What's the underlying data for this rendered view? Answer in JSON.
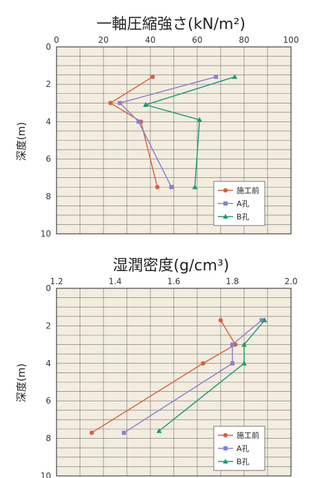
{
  "chart_data": [
    {
      "type": "line",
      "title": "一軸圧縮強さ(kN/m²)",
      "ylabel": "深度(m)",
      "xlim": [
        0,
        100
      ],
      "ylim": [
        0,
        10
      ],
      "y_inverted": true,
      "x_axis_position": "top",
      "x_ticks": [
        "0",
        "20",
        "40",
        "60",
        "80",
        "100"
      ],
      "y_ticks": [
        "0",
        "2",
        "4",
        "6",
        "8",
        "10"
      ],
      "grid": true,
      "legend_position": "bottom-right",
      "series": [
        {
          "name": "施工前",
          "color": "#d9603b",
          "marker": "circle",
          "points": [
            [
              41,
              1.6
            ],
            [
              23,
              3.0
            ],
            [
              36,
              4.0
            ],
            [
              43,
              7.5
            ]
          ]
        },
        {
          "name": "A孔",
          "color": "#8a7fd0",
          "marker": "square",
          "points": [
            [
              68,
              1.6
            ],
            [
              27,
              3.0
            ],
            [
              35,
              4.0
            ],
            [
              49,
              7.5
            ]
          ]
        },
        {
          "name": "B孔",
          "color": "#1a9a72",
          "marker": "triangle",
          "points": [
            [
              76,
              1.6
            ],
            [
              38,
              3.1
            ],
            [
              61,
              3.9
            ],
            [
              59,
              7.5
            ]
          ]
        }
      ]
    },
    {
      "type": "line",
      "title": "湿潤密度(g/cm³)",
      "ylabel": "深度(m)",
      "xlim": [
        1.2,
        2.0
      ],
      "ylim": [
        0,
        10
      ],
      "y_inverted": true,
      "x_axis_position": "top",
      "x_ticks": [
        "1.2",
        "1.4",
        "1.6",
        "1.8",
        "2.0"
      ],
      "y_ticks": [
        "0",
        "2",
        "4",
        "6",
        "8",
        "10"
      ],
      "grid": true,
      "legend_position": "bottom-right",
      "series": [
        {
          "name": "施工前",
          "color": "#d9603b",
          "marker": "circle",
          "points": [
            [
              1.76,
              1.7
            ],
            [
              1.81,
              3.0
            ],
            [
              1.7,
              4.0
            ],
            [
              1.32,
              7.7
            ]
          ]
        },
        {
          "name": "A孔",
          "color": "#8a7fd0",
          "marker": "square",
          "points": [
            [
              1.9,
              1.7
            ],
            [
              1.8,
              3.0
            ],
            [
              1.8,
              4.0
            ],
            [
              1.43,
              7.7
            ]
          ]
        },
        {
          "name": "B孔",
          "color": "#1a9a72",
          "marker": "triangle",
          "points": [
            [
              1.91,
              1.7
            ],
            [
              1.84,
              3.0
            ],
            [
              1.84,
              4.0
            ],
            [
              1.55,
              7.6
            ]
          ]
        }
      ]
    }
  ],
  "colors": {
    "plot_bg": "#f3ede0",
    "grid": "#6b6b6b",
    "frame": "#444444"
  }
}
